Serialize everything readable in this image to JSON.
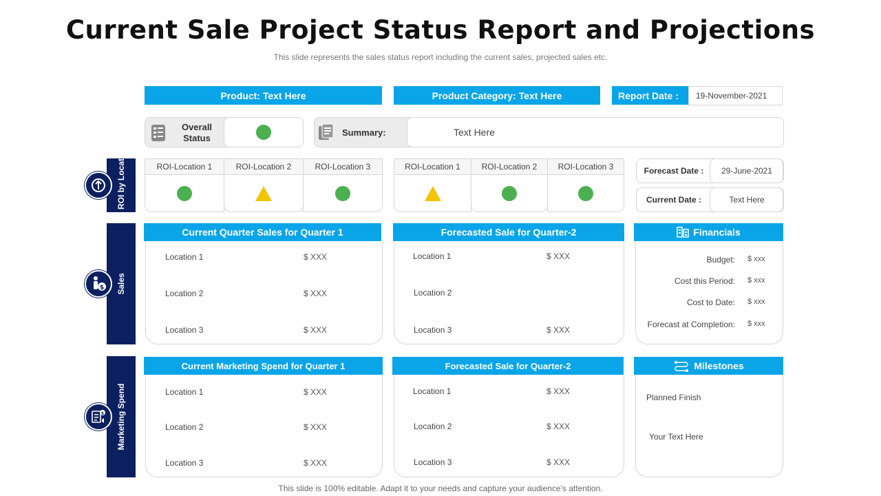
{
  "title": "Current Sale Project Status Report and Projections",
  "subtitle": "This slide represents the sales status report including the current sales, projected sales etc.",
  "footer": "This slide is 100% editable. Adapt it to your needs and capture your audience's attention.",
  "header": {
    "product": "Product: Text Here",
    "category": "Product Category: Text Here",
    "report_date_label": "Report Date :",
    "report_date_value": "19-November-2021"
  },
  "status": {
    "overall_label": "Overall Status",
    "overall_color": "#4caf50",
    "summary_label": "Summary:",
    "summary_value": "Text Here"
  },
  "roi": {
    "side_label": "ROI by Location",
    "group1": [
      {
        "label": "ROI-Location 1",
        "status": "green"
      },
      {
        "label": "ROI-Location 2",
        "status": "yellow"
      },
      {
        "label": "ROI-Location 3",
        "status": "green"
      }
    ],
    "group2": [
      {
        "label": "ROI-Location 1",
        "status": "yellow"
      },
      {
        "label": "ROI-Location 2",
        "status": "green"
      },
      {
        "label": "ROI-Location 3",
        "status": "green"
      }
    ]
  },
  "dates": {
    "forecast_label": "Forecast Date :",
    "forecast_value": "29-June-2021",
    "current_label": "Current Date :",
    "current_value": "Text Here"
  },
  "sales": {
    "side_label": "Sales",
    "current": {
      "title": "Current Quarter Sales for Quarter 1",
      "rows": [
        {
          "loc": "Location 1",
          "val": "$ XXX"
        },
        {
          "loc": "Location 2",
          "val": "$ XXX"
        },
        {
          "loc": "Location 3",
          "val": "$ XXX"
        }
      ]
    },
    "forecast": {
      "title": "Forecasted Sale for Quarter-2",
      "rows": [
        {
          "loc": "Location 1",
          "val": "$ XXX"
        },
        {
          "loc": "Location 2",
          "val": ""
        },
        {
          "loc": "Location 3",
          "val": "$ XXX"
        }
      ]
    }
  },
  "financials": {
    "title": "Financials",
    "rows": [
      {
        "label": "Budget:",
        "val": "$ xxx"
      },
      {
        "label": "Cost this Period:",
        "val": "$ xxx"
      },
      {
        "label": "Cost to Date:",
        "val": "$ xxx"
      },
      {
        "label": "Forecast at Completion:",
        "val": "$ xxx"
      }
    ]
  },
  "marketing": {
    "side_label": "Marketing Spend",
    "current": {
      "title": "Current Marketing Spend for Quarter 1",
      "rows": [
        {
          "loc": "Location 1",
          "val": "$ XXX"
        },
        {
          "loc": "Location 2",
          "val": "$ XXX"
        },
        {
          "loc": "Location 3",
          "val": "$ XXX"
        }
      ]
    },
    "forecast": {
      "title": "Forecasted Sale for Quarter-2",
      "rows": [
        {
          "loc": "Location 1",
          "val": "$ XXX"
        },
        {
          "loc": "Location 2",
          "val": "$ XXX"
        },
        {
          "loc": "Location 3",
          "val": "$ XXX"
        }
      ]
    }
  },
  "milestones": {
    "title": "Milestones",
    "planned": "Planned Finish",
    "text": "Your Text Here"
  },
  "colors": {
    "accent": "#0aa5e8",
    "navy": "#0c2060",
    "green": "#4caf50",
    "yellow": "#f5c400"
  }
}
